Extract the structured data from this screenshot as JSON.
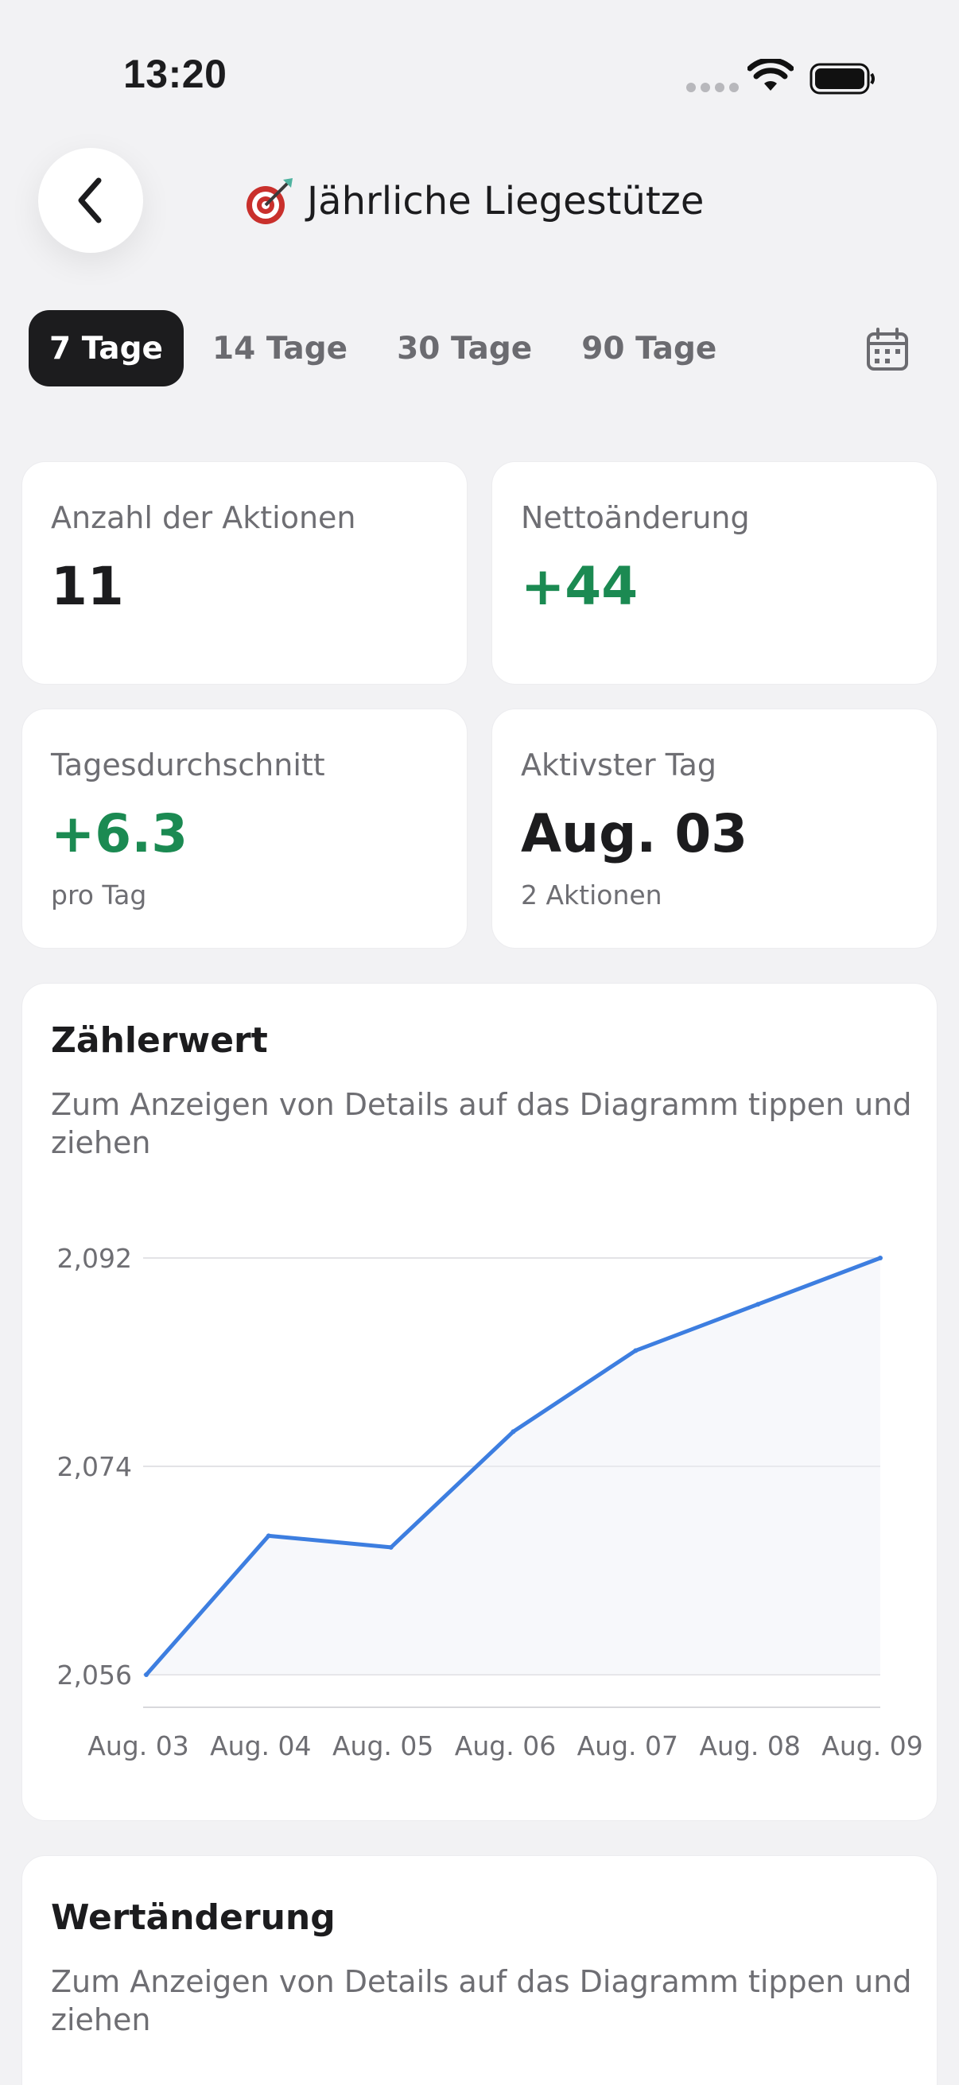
{
  "status_bar": {
    "time": "13:20"
  },
  "header": {
    "title": "Jährliche Liegestütze"
  },
  "tabs": [
    {
      "label": "7 Tage",
      "active": true
    },
    {
      "label": "14 Tage",
      "active": false
    },
    {
      "label": "30 Tage",
      "active": false
    },
    {
      "label": "90 Tage",
      "active": false
    }
  ],
  "stats": {
    "actions": {
      "label": "Anzahl der Aktionen",
      "value": "11"
    },
    "net_change": {
      "label": "Nettoänderung",
      "value": "+44"
    },
    "daily_avg": {
      "label": "Tagesdurchschnitt",
      "value": "+6.3",
      "sub": "pro Tag"
    },
    "most_active": {
      "label": "Aktivster Tag",
      "value": "Aug. 03",
      "sub": "2 Aktionen"
    }
  },
  "counter_chart": {
    "title": "Zählerwert",
    "subtitle": "Zum Anzeigen von Details auf das Diagramm tippen und ziehen"
  },
  "change_chart": {
    "title": "Wertänderung",
    "subtitle": "Zum Anzeigen von Details auf das Diagramm tippen und ziehen"
  },
  "colors": {
    "accent": "#1c1c1e",
    "positive": "#1b8a52",
    "line": "#3d7ee0"
  },
  "chart_data": {
    "type": "line",
    "x": [
      "Aug. 03",
      "Aug. 04",
      "Aug. 05",
      "Aug. 06",
      "Aug. 07",
      "Aug. 08",
      "Aug. 09"
    ],
    "y": [
      2056,
      2068,
      2067,
      2077,
      2084,
      2088,
      2092
    ],
    "yticks": [
      "2,092",
      "2,074",
      "2,056"
    ],
    "ylim": [
      2056,
      2092
    ],
    "grid": true
  }
}
